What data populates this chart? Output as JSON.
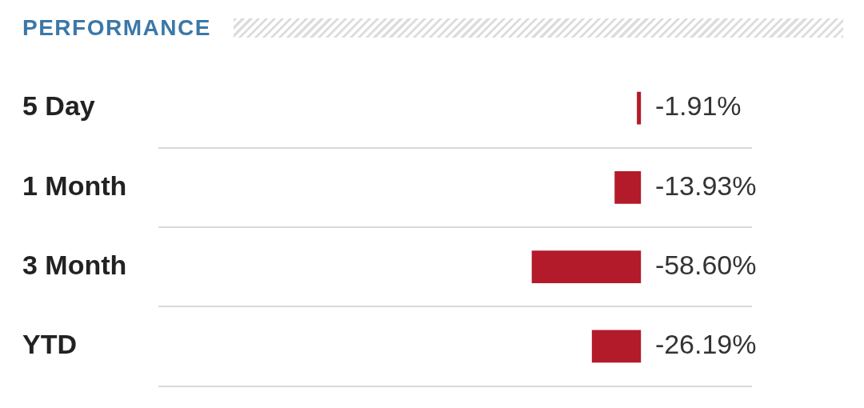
{
  "chart_data": {
    "type": "bar",
    "orientation": "horizontal",
    "title": "PERFORMANCE",
    "categories": [
      "5 Day",
      "1 Month",
      "3 Month",
      "YTD"
    ],
    "values": [
      -1.91,
      -13.93,
      -58.6,
      -26.19
    ],
    "value_labels": [
      "-1.91%",
      "-13.93%",
      "-58.60%",
      "-26.19%"
    ],
    "color": "#b31b2a",
    "xlim": [
      -260,
      60
    ],
    "grid": "y",
    "tick_labels": "y",
    "legend": false
  }
}
